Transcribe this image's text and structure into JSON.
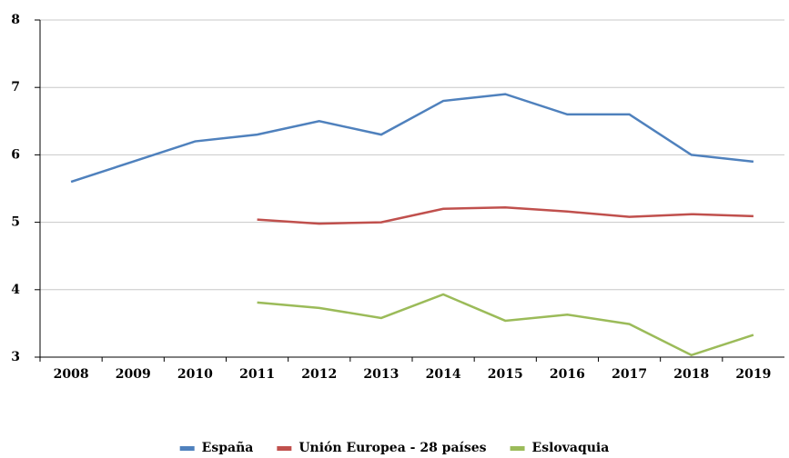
{
  "chart_data": {
    "type": "line",
    "categories": [
      "2008",
      "2009",
      "2010",
      "2011",
      "2012",
      "2013",
      "2014",
      "2015",
      "2016",
      "2017",
      "2018",
      "2019"
    ],
    "series": [
      {
        "name": "España",
        "color": "#4f81bd",
        "values": [
          5.6,
          5.9,
          6.2,
          6.3,
          6.5,
          6.3,
          6.8,
          6.9,
          6.6,
          6.6,
          6.0,
          5.9
        ]
      },
      {
        "name": "Unión Europea - 28 países",
        "color": "#c0504d",
        "values": [
          null,
          null,
          null,
          5.04,
          4.98,
          5.0,
          5.2,
          5.22,
          5.16,
          5.08,
          5.12,
          5.09
        ]
      },
      {
        "name": "Eslovaquia",
        "color": "#9bbb59",
        "values": [
          null,
          null,
          null,
          3.81,
          3.73,
          3.58,
          3.93,
          3.54,
          3.63,
          3.49,
          3.03,
          3.33
        ]
      }
    ],
    "ylim": [
      3,
      8
    ],
    "yticks": [
      3,
      4,
      5,
      6,
      7,
      8
    ],
    "grid": true,
    "legend": "bottom"
  }
}
